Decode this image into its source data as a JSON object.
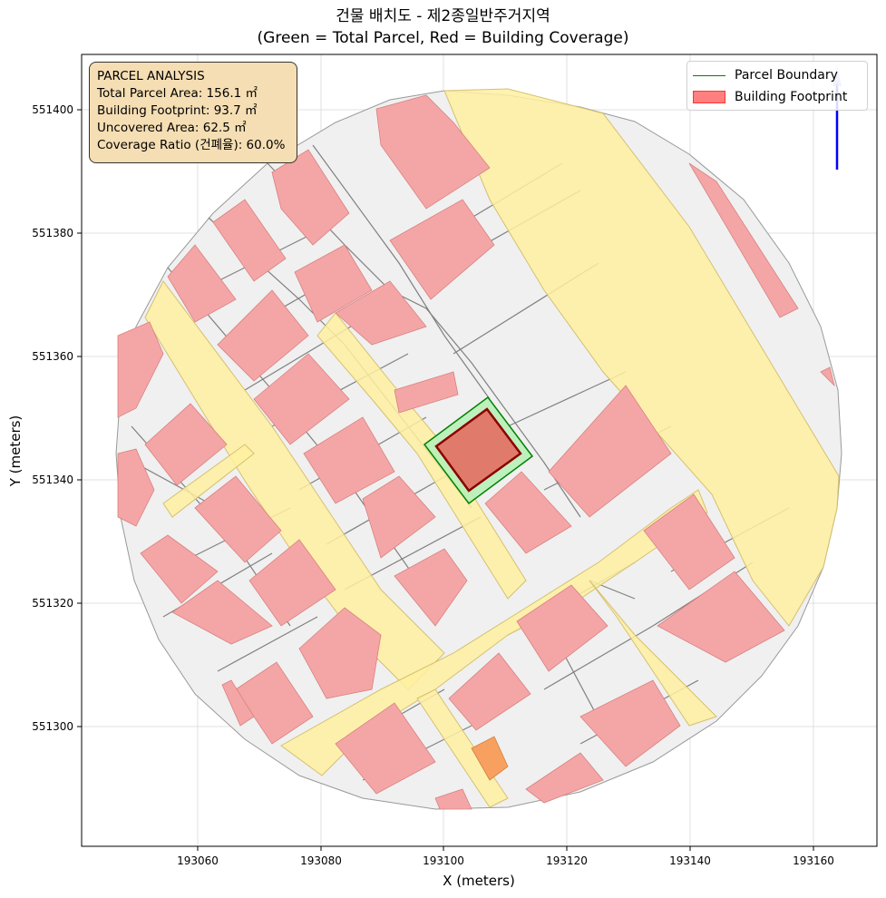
{
  "title": {
    "line1": "건물 배치도 - 제2종일반주거지역",
    "line2": "(Green = Total Parcel, Red = Building Coverage)"
  },
  "axes": {
    "xlabel": "X (meters)",
    "ylabel": "Y (meters)",
    "x_ticks": [
      "193060",
      "193080",
      "193100",
      "193120",
      "193140",
      "193160"
    ],
    "y_ticks": [
      "551400",
      "551380",
      "551360",
      "551340",
      "551320",
      "551300"
    ],
    "grid": true
  },
  "legend": {
    "placement": "top-right",
    "items": [
      {
        "label": "Parcel Boundary",
        "type": "line",
        "color": "#008000"
      },
      {
        "label": "Building Footprint",
        "type": "patch",
        "color": "#ff0000"
      }
    ]
  },
  "info_box": {
    "title": "PARCEL ANALYSIS",
    "lines": [
      "Total Parcel Area: 156.1 ㎡",
      "Building Footprint: 93.7 ㎡",
      "Uncovered Area: 62.5 ㎡",
      "Coverage Ratio (건폐율): 60.0%"
    ]
  },
  "colors": {
    "road": "#fff0a0",
    "parcel_fill": "#f0f0f0",
    "building": "#f4a6a6",
    "target_parcel": "#b8f0b8",
    "target_building": "#e07b6b",
    "north_arrow": "#0000ff"
  }
}
